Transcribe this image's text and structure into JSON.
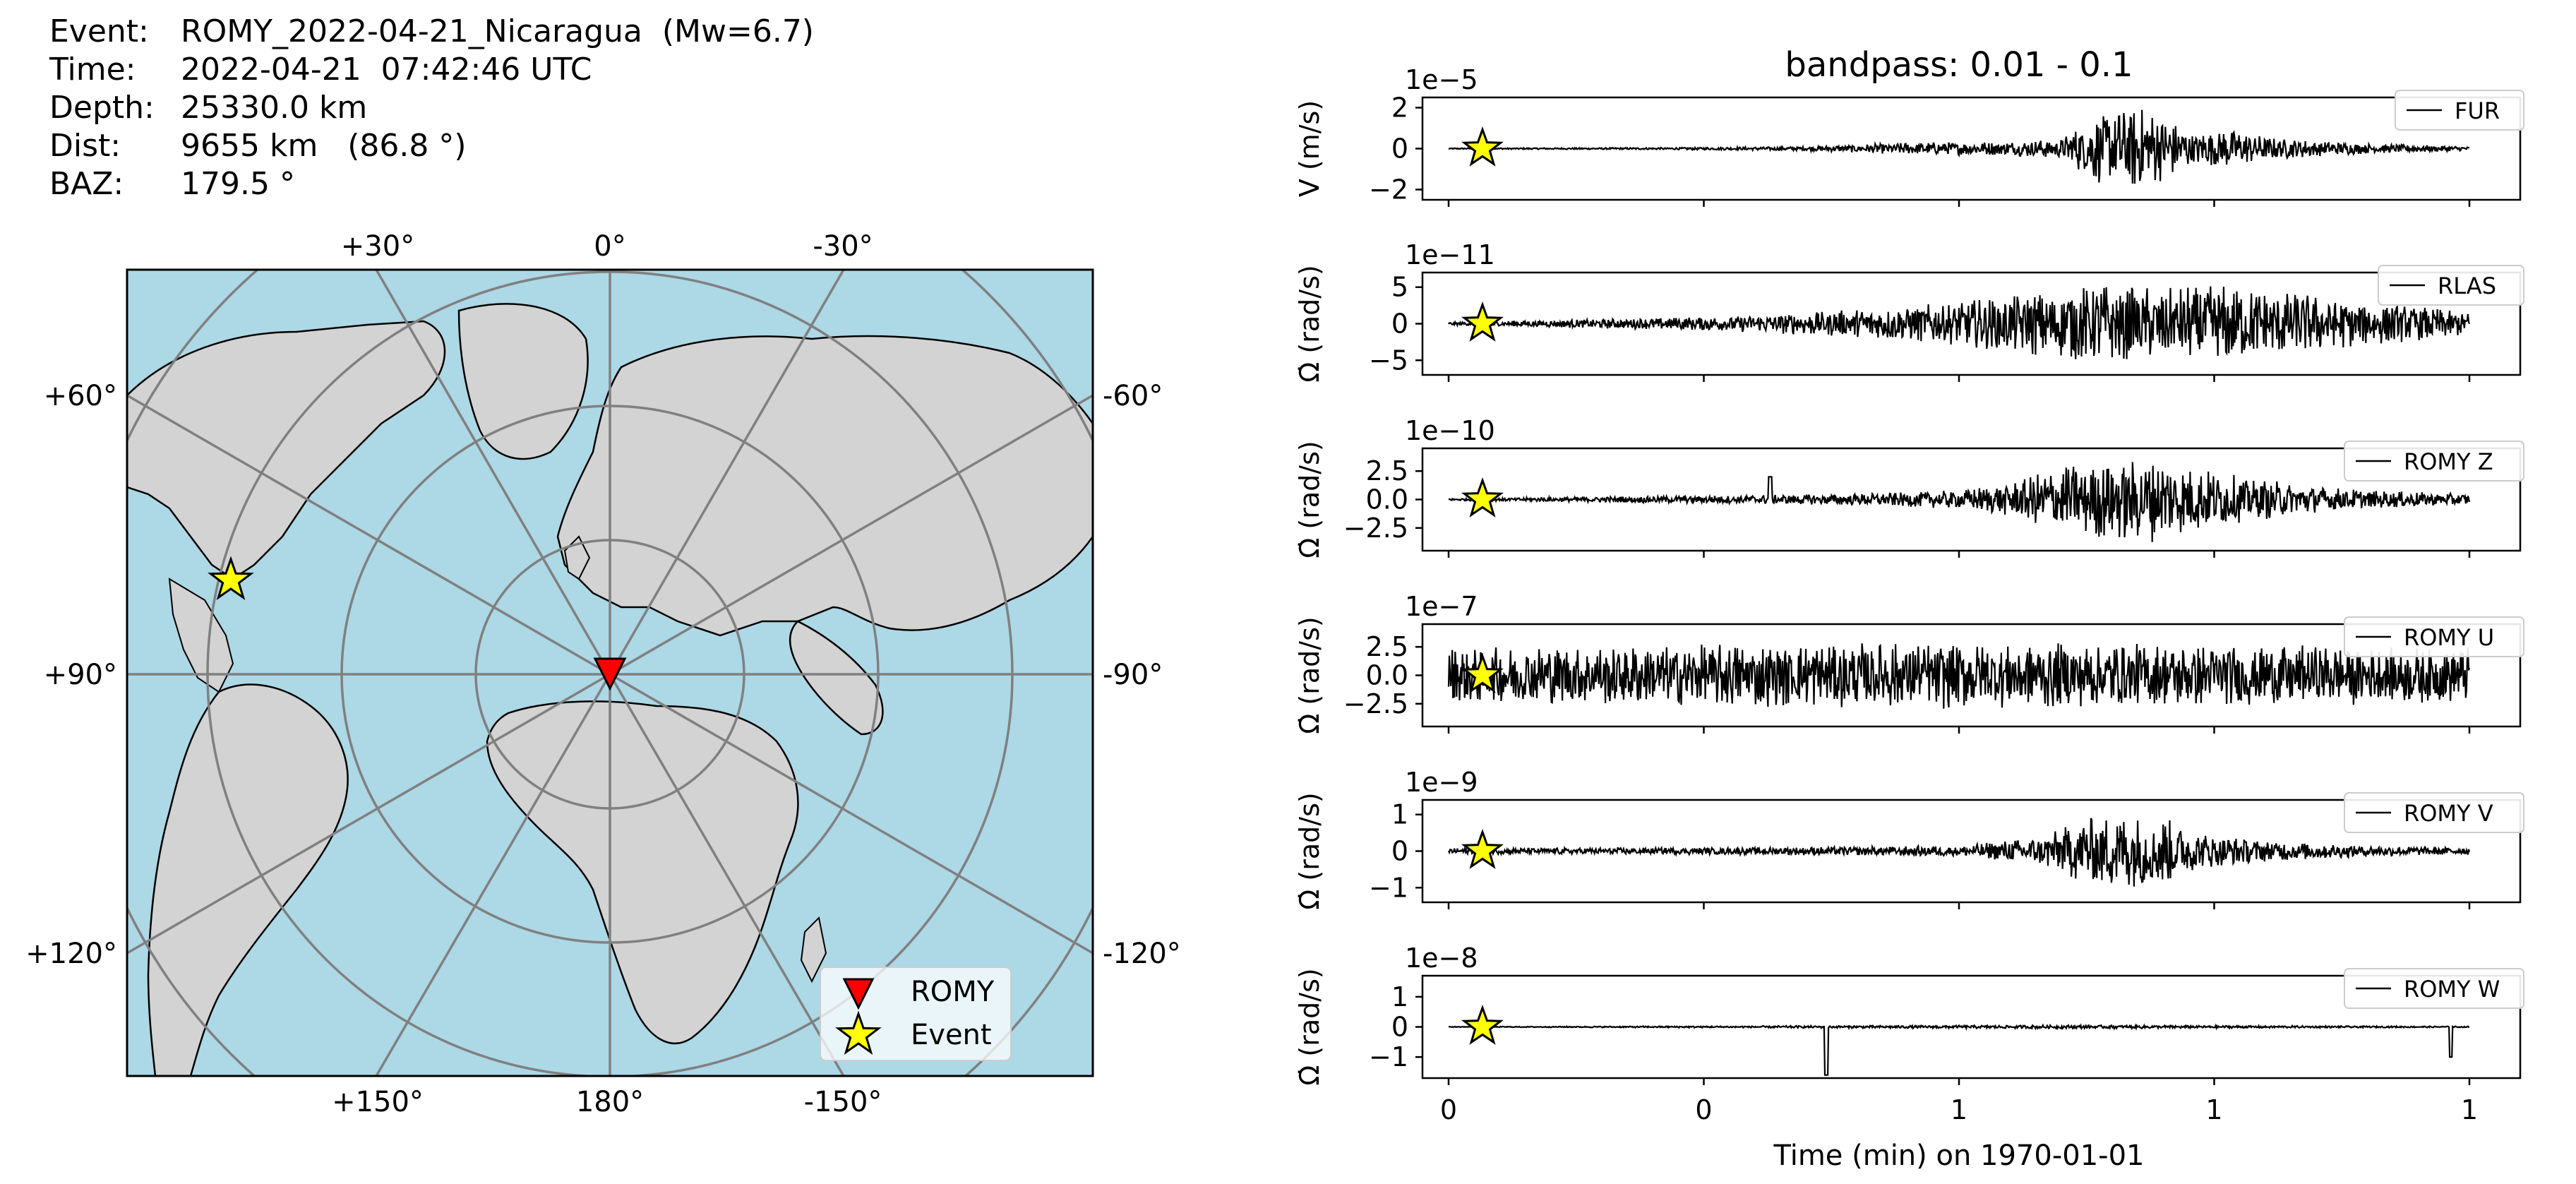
{
  "info": {
    "event_label": "Event:",
    "event_value": "ROMY_2022-04-21_Nicaragua  (Mw=6.7)",
    "time_label": "Time:",
    "time_value": "2022-04-21  07:42:46 UTC",
    "depth_label": "Depth:",
    "depth_value": "25330.0 km",
    "dist_label": "Dist:",
    "dist_value": "9655 km   (86.8 °)",
    "baz_label": "BAZ:",
    "baz_value": "179.5 °"
  },
  "map": {
    "top_labels": [
      "+30°",
      "0°",
      "-30°"
    ],
    "bottom_labels": [
      "+150°",
      "180°",
      "-150°"
    ],
    "left_labels": [
      "+60°",
      "+90°",
      "+120°"
    ],
    "right_labels": [
      "-60°",
      "-90°",
      "-120°"
    ],
    "legend": {
      "station": "ROMY",
      "event": "Event"
    },
    "colors": {
      "ocean": "#add8e6",
      "land": "#d3d3d3",
      "station": "#ff0000",
      "event": "#ffff00"
    }
  },
  "chart_data": {
    "type": "line",
    "title": "bandpass: 0.01 - 0.1",
    "xlabel": "Time (min) on 1970-01-01",
    "x_tick_labels": [
      "0",
      "0",
      "1",
      "1",
      "1"
    ],
    "panels": [
      {
        "name": "FUR",
        "ylabel": "V (m/s)",
        "exponent": "1e−5",
        "yticks": [
          "2",
          "0",
          "−2"
        ],
        "ytick_values": [
          2,
          0,
          -2
        ],
        "ylim": [
          -2.5,
          2.5
        ],
        "envelope": [
          [
            0,
            0.03
          ],
          [
            0.2,
            0.05
          ],
          [
            0.35,
            0.1
          ],
          [
            0.45,
            0.3
          ],
          [
            0.55,
            0.35
          ],
          [
            0.6,
            0.5
          ],
          [
            0.62,
            1.2
          ],
          [
            0.64,
            1.8
          ],
          [
            0.67,
            2.2
          ],
          [
            0.7,
            1.6
          ],
          [
            0.73,
            0.8
          ],
          [
            0.76,
            1.0
          ],
          [
            0.8,
            0.6
          ],
          [
            0.85,
            0.4
          ],
          [
            0.9,
            0.25
          ],
          [
            1.0,
            0.1
          ]
        ]
      },
      {
        "name": "RLAS",
        "ylabel": "Ω̇ (rad/s)",
        "exponent": "1e−11",
        "yticks": [
          "5",
          "0",
          "−5"
        ],
        "ytick_values": [
          5,
          0,
          -5
        ],
        "ylim": [
          -7,
          7
        ],
        "envelope": [
          [
            0,
            0.2
          ],
          [
            0.1,
            0.5
          ],
          [
            0.2,
            0.8
          ],
          [
            0.3,
            1.2
          ],
          [
            0.4,
            2
          ],
          [
            0.5,
            3
          ],
          [
            0.55,
            4
          ],
          [
            0.6,
            5
          ],
          [
            0.65,
            5.5
          ],
          [
            0.7,
            5
          ],
          [
            0.75,
            5.5
          ],
          [
            0.8,
            4.5
          ],
          [
            0.85,
            4
          ],
          [
            0.9,
            3
          ],
          [
            0.95,
            2.5
          ],
          [
            1.0,
            1.5
          ]
        ]
      },
      {
        "name": "ROMY Z",
        "ylabel": "Ω̇ (rad/s)",
        "exponent": "1e−10",
        "yticks": [
          "2.5",
          "0.0",
          "−2.5"
        ],
        "ytick_values": [
          2.5,
          0,
          -2.5
        ],
        "ylim": [
          -4.5,
          4.5
        ],
        "envelope": [
          [
            0,
            0.1
          ],
          [
            0.2,
            0.3
          ],
          [
            0.3,
            0.4
          ],
          [
            0.4,
            0.5
          ],
          [
            0.5,
            0.8
          ],
          [
            0.55,
            1.5
          ],
          [
            0.6,
            3
          ],
          [
            0.65,
            3.5
          ],
          [
            0.68,
            4
          ],
          [
            0.72,
            3
          ],
          [
            0.78,
            2
          ],
          [
            0.85,
            1.2
          ],
          [
            0.9,
            0.8
          ],
          [
            1.0,
            0.5
          ]
        ],
        "spikes": [
          [
            0.315,
            2.0
          ]
        ]
      },
      {
        "name": "ROMY U",
        "ylabel": "Ω̇ (rad/s)",
        "exponent": "1e−7",
        "yticks": [
          "2.5",
          "0.0",
          "−2.5"
        ],
        "ytick_values": [
          2.5,
          0,
          -2.5
        ],
        "ylim": [
          -4.5,
          4.5
        ],
        "envelope": [
          [
            0,
            2.5
          ],
          [
            0.5,
            3
          ],
          [
            1.0,
            2.5
          ]
        ]
      },
      {
        "name": "ROMY V",
        "ylabel": "Ω̇ (rad/s)",
        "exponent": "1e−9",
        "yticks": [
          "1",
          "0",
          "−1"
        ],
        "ytick_values": [
          1,
          0,
          -1
        ],
        "ylim": [
          -1.4,
          1.4
        ],
        "envelope": [
          [
            0,
            0.08
          ],
          [
            0.3,
            0.1
          ],
          [
            0.5,
            0.15
          ],
          [
            0.58,
            0.4
          ],
          [
            0.62,
            0.9
          ],
          [
            0.66,
            1.1
          ],
          [
            0.7,
            1.0
          ],
          [
            0.74,
            0.5
          ],
          [
            0.8,
            0.3
          ],
          [
            0.9,
            0.15
          ],
          [
            1.0,
            0.1
          ]
        ]
      },
      {
        "name": "ROMY W",
        "ylabel": "Ω̇ (rad/s)",
        "exponent": "1e−8",
        "yticks": [
          "1",
          "0",
          "−1"
        ],
        "ytick_values": [
          1,
          0,
          -1
        ],
        "ylim": [
          -1.7,
          1.7
        ],
        "envelope": [
          [
            0,
            0.01
          ],
          [
            0.5,
            0.05
          ],
          [
            0.6,
            0.06
          ],
          [
            0.7,
            0.05
          ],
          [
            1.0,
            0.02
          ]
        ],
        "spikes": [
          [
            0.37,
            -1.6
          ],
          [
            0.982,
            -1.0
          ]
        ]
      }
    ]
  }
}
